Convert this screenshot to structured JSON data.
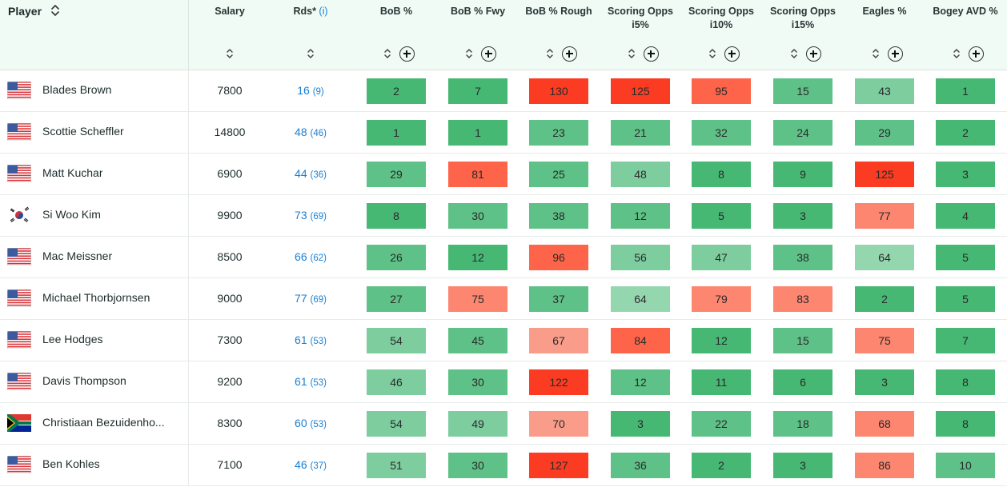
{
  "table": {
    "player_header": "Player",
    "columns": [
      {
        "key": "salary",
        "label": "Salary",
        "plus": false
      },
      {
        "key": "rds",
        "label": "Rds*",
        "info": "(i)",
        "plus": false
      },
      {
        "key": "bob",
        "label": "BoB %",
        "plus": true
      },
      {
        "key": "bob_fwy",
        "label": "BoB % Fwy",
        "plus": true
      },
      {
        "key": "bob_rough",
        "label": "BoB % Rough",
        "plus": true
      },
      {
        "key": "so_i5",
        "label": "Scoring Opps i5%",
        "plus": true
      },
      {
        "key": "so_i10",
        "label": "Scoring Opps i10%",
        "plus": true
      },
      {
        "key": "so_i15",
        "label": "Scoring Opps i15%",
        "plus": true
      },
      {
        "key": "eagles",
        "label": "Eagles %",
        "plus": true
      },
      {
        "key": "bogey_avd",
        "label": "Bogey AVD %",
        "plus": true
      }
    ]
  },
  "colors": {
    "green_dark": "#46b874",
    "green_mid": "#5ec187",
    "green_light": "#7dcd9f",
    "green_pale": "#94d7af",
    "red_strong": "#fb3c22",
    "red_mid": "#fd6449",
    "red_light": "#fc8670",
    "red_pale": "#f99c89",
    "link": "#1a7fd1"
  },
  "players": [
    {
      "name": "Blades Brown",
      "flag": "usa",
      "salary": "7800",
      "rds": "16",
      "rds_sub": "(9)",
      "metrics": [
        {
          "v": "2",
          "c": "green_dark"
        },
        {
          "v": "7",
          "c": "green_dark"
        },
        {
          "v": "130",
          "c": "red_strong"
        },
        {
          "v": "125",
          "c": "red_strong"
        },
        {
          "v": "95",
          "c": "red_mid"
        },
        {
          "v": "15",
          "c": "green_mid"
        },
        {
          "v": "43",
          "c": "green_light"
        },
        {
          "v": "1",
          "c": "green_dark"
        }
      ]
    },
    {
      "name": "Scottie Scheffler",
      "flag": "usa",
      "salary": "14800",
      "rds": "48",
      "rds_sub": "(46)",
      "metrics": [
        {
          "v": "1",
          "c": "green_dark"
        },
        {
          "v": "1",
          "c": "green_dark"
        },
        {
          "v": "23",
          "c": "green_mid"
        },
        {
          "v": "21",
          "c": "green_mid"
        },
        {
          "v": "32",
          "c": "green_mid"
        },
        {
          "v": "24",
          "c": "green_mid"
        },
        {
          "v": "29",
          "c": "green_mid"
        },
        {
          "v": "2",
          "c": "green_dark"
        }
      ]
    },
    {
      "name": "Matt Kuchar",
      "flag": "usa",
      "salary": "6900",
      "rds": "44",
      "rds_sub": "(36)",
      "metrics": [
        {
          "v": "29",
          "c": "green_mid"
        },
        {
          "v": "81",
          "c": "red_mid"
        },
        {
          "v": "25",
          "c": "green_mid"
        },
        {
          "v": "48",
          "c": "green_light"
        },
        {
          "v": "8",
          "c": "green_dark"
        },
        {
          "v": "9",
          "c": "green_dark"
        },
        {
          "v": "125",
          "c": "red_strong"
        },
        {
          "v": "3",
          "c": "green_dark"
        }
      ]
    },
    {
      "name": "Si Woo Kim",
      "flag": "korea",
      "salary": "9900",
      "rds": "73",
      "rds_sub": "(69)",
      "metrics": [
        {
          "v": "8",
          "c": "green_dark"
        },
        {
          "v": "30",
          "c": "green_mid"
        },
        {
          "v": "38",
          "c": "green_mid"
        },
        {
          "v": "12",
          "c": "green_mid"
        },
        {
          "v": "5",
          "c": "green_dark"
        },
        {
          "v": "3",
          "c": "green_dark"
        },
        {
          "v": "77",
          "c": "red_light"
        },
        {
          "v": "4",
          "c": "green_dark"
        }
      ]
    },
    {
      "name": "Mac Meissner",
      "flag": "usa",
      "salary": "8500",
      "rds": "66",
      "rds_sub": "(62)",
      "metrics": [
        {
          "v": "26",
          "c": "green_mid"
        },
        {
          "v": "12",
          "c": "green_dark"
        },
        {
          "v": "96",
          "c": "red_mid"
        },
        {
          "v": "56",
          "c": "green_light"
        },
        {
          "v": "47",
          "c": "green_light"
        },
        {
          "v": "38",
          "c": "green_mid"
        },
        {
          "v": "64",
          "c": "green_pale"
        },
        {
          "v": "5",
          "c": "green_dark"
        }
      ]
    },
    {
      "name": "Michael Thorbjornsen",
      "flag": "usa",
      "salary": "9000",
      "rds": "77",
      "rds_sub": "(69)",
      "metrics": [
        {
          "v": "27",
          "c": "green_mid"
        },
        {
          "v": "75",
          "c": "red_light"
        },
        {
          "v": "37",
          "c": "green_mid"
        },
        {
          "v": "64",
          "c": "green_pale"
        },
        {
          "v": "79",
          "c": "red_light"
        },
        {
          "v": "83",
          "c": "red_light"
        },
        {
          "v": "2",
          "c": "green_dark"
        },
        {
          "v": "5",
          "c": "green_dark"
        }
      ]
    },
    {
      "name": "Lee Hodges",
      "flag": "usa",
      "salary": "7300",
      "rds": "61",
      "rds_sub": "(53)",
      "metrics": [
        {
          "v": "54",
          "c": "green_light"
        },
        {
          "v": "45",
          "c": "green_mid"
        },
        {
          "v": "67",
          "c": "red_pale"
        },
        {
          "v": "84",
          "c": "red_mid"
        },
        {
          "v": "12",
          "c": "green_dark"
        },
        {
          "v": "15",
          "c": "green_mid"
        },
        {
          "v": "75",
          "c": "red_light"
        },
        {
          "v": "7",
          "c": "green_dark"
        }
      ]
    },
    {
      "name": "Davis Thompson",
      "flag": "usa",
      "salary": "9200",
      "rds": "61",
      "rds_sub": "(53)",
      "metrics": [
        {
          "v": "46",
          "c": "green_light"
        },
        {
          "v": "30",
          "c": "green_mid"
        },
        {
          "v": "122",
          "c": "red_strong"
        },
        {
          "v": "12",
          "c": "green_mid"
        },
        {
          "v": "11",
          "c": "green_dark"
        },
        {
          "v": "6",
          "c": "green_dark"
        },
        {
          "v": "3",
          "c": "green_dark"
        },
        {
          "v": "8",
          "c": "green_dark"
        }
      ]
    },
    {
      "name": "Christiaan Bezuidenho...",
      "flag": "southafrica",
      "salary": "8300",
      "rds": "60",
      "rds_sub": "(53)",
      "metrics": [
        {
          "v": "54",
          "c": "green_light"
        },
        {
          "v": "49",
          "c": "green_light"
        },
        {
          "v": "70",
          "c": "red_pale"
        },
        {
          "v": "3",
          "c": "green_dark"
        },
        {
          "v": "22",
          "c": "green_mid"
        },
        {
          "v": "18",
          "c": "green_mid"
        },
        {
          "v": "68",
          "c": "red_light"
        },
        {
          "v": "8",
          "c": "green_dark"
        }
      ]
    },
    {
      "name": "Ben Kohles",
      "flag": "usa",
      "salary": "7100",
      "rds": "46",
      "rds_sub": "(37)",
      "metrics": [
        {
          "v": "51",
          "c": "green_light"
        },
        {
          "v": "30",
          "c": "green_mid"
        },
        {
          "v": "127",
          "c": "red_strong"
        },
        {
          "v": "36",
          "c": "green_mid"
        },
        {
          "v": "2",
          "c": "green_dark"
        },
        {
          "v": "3",
          "c": "green_dark"
        },
        {
          "v": "86",
          "c": "red_light"
        },
        {
          "v": "10",
          "c": "green_mid"
        }
      ]
    }
  ]
}
